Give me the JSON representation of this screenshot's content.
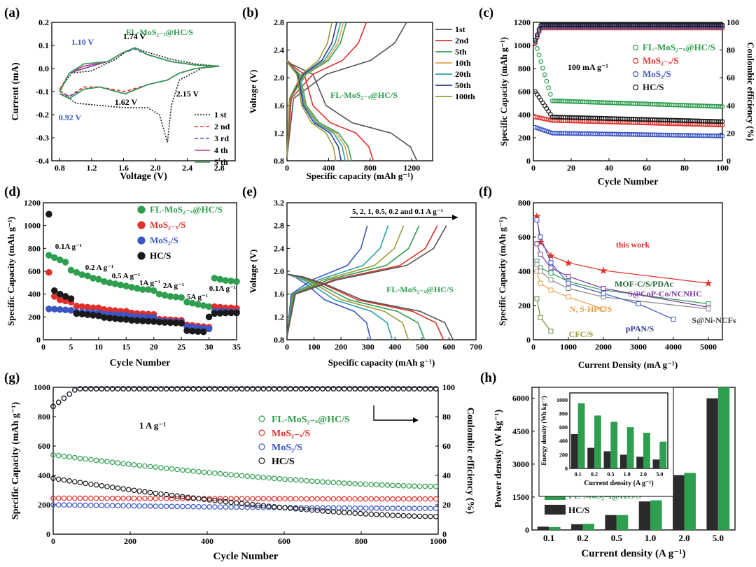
{
  "colors": {
    "green": "#2e9e4f",
    "red": "#e0302b",
    "blue": "#3b56c4",
    "black": "#1a1a1a",
    "gray": "#555555",
    "olive": "#9a9a35",
    "teal": "#27a3a8",
    "navy": "#2a3a8f",
    "orange": "#e8a04a",
    "purple": "#7a3a9a",
    "dark_bar": "#2b2b2b"
  },
  "chart_data": [
    {
      "panel": "(a)",
      "type": "line",
      "xlabel": "Voltage (V)",
      "ylabel": "Current (mA)",
      "xlim": [
        0.7,
        3.0
      ],
      "ylim": [
        -0.4,
        0.2
      ],
      "xticks": [
        "0.8",
        "1.2",
        "1.6",
        "2.0",
        "2.4",
        "2.8"
      ],
      "yticks": [
        "-0.4",
        "-0.3",
        "-0.2",
        "-0.1",
        "0.0",
        "0.1",
        "0.2"
      ],
      "material": "FL-MoS₂₋ₓ@HC/S",
      "annotations": [
        "1.10 V",
        "1.74 V",
        "2.15 V",
        "1.62 V",
        "0.92 V"
      ],
      "series": [
        {
          "name": "1 st",
          "style": "dotted",
          "color": "#1a1a1a",
          "x": [
            0.8,
            0.95,
            1.2,
            1.5,
            1.62,
            1.7,
            1.74,
            1.9,
            2.2,
            2.5,
            2.8,
            2.6,
            2.3,
            2.2,
            2.15,
            2.05,
            1.9,
            1.62,
            1.3,
            1.0,
            0.85,
            0.8
          ],
          "y": [
            -0.09,
            -0.02,
            -0.01,
            0.04,
            0.07,
            0.08,
            0.09,
            0.07,
            0.04,
            0.02,
            0.01,
            0.005,
            -0.05,
            -0.16,
            -0.32,
            -0.2,
            -0.17,
            -0.17,
            -0.16,
            -0.15,
            -0.11,
            -0.09
          ]
        },
        {
          "name": "2 nd",
          "style": "dashed",
          "color": "#e0302b",
          "x": [
            0.8,
            0.92,
            1.1,
            1.4,
            1.6,
            1.74,
            1.9,
            2.2,
            2.5,
            2.8,
            2.5,
            2.3,
            2.15,
            1.9,
            1.62,
            1.3,
            1.1,
            0.92,
            0.8
          ],
          "y": [
            -0.09,
            -0.02,
            0.0,
            0.03,
            0.07,
            0.09,
            0.06,
            0.03,
            0.015,
            0.01,
            0.0,
            -0.02,
            -0.05,
            -0.07,
            -0.1,
            -0.08,
            -0.08,
            -0.12,
            -0.1
          ]
        },
        {
          "name": "3 rd",
          "style": "dashed",
          "color": "#3b56c4",
          "x": [
            0.8,
            0.92,
            1.1,
            1.4,
            1.6,
            1.74,
            1.9,
            2.2,
            2.5,
            2.8,
            2.5,
            2.3,
            2.15,
            1.9,
            1.62,
            1.3,
            1.1,
            0.92,
            0.8
          ],
          "y": [
            -0.1,
            -0.02,
            0.0,
            0.03,
            0.07,
            0.085,
            0.06,
            0.03,
            0.015,
            0.01,
            0.0,
            -0.02,
            -0.05,
            -0.07,
            -0.11,
            -0.08,
            -0.09,
            -0.12,
            -0.11
          ]
        },
        {
          "name": "4 th",
          "style": "solid",
          "color": "#c03a9a",
          "x": [
            0.8,
            0.92,
            1.1,
            1.4,
            1.6,
            1.74,
            1.9,
            2.2,
            2.5,
            2.8,
            2.5,
            2.3,
            2.15,
            1.9,
            1.62,
            1.3,
            1.1,
            0.92,
            0.8
          ],
          "y": [
            -0.1,
            -0.02,
            0.01,
            0.03,
            0.07,
            0.09,
            0.06,
            0.03,
            0.015,
            0.01,
            0.0,
            -0.02,
            -0.05,
            -0.07,
            -0.11,
            -0.08,
            -0.09,
            -0.13,
            -0.11
          ]
        },
        {
          "name": "5 th",
          "style": "solid",
          "color": "#2e9e4f",
          "x": [
            0.8,
            0.92,
            1.1,
            1.4,
            1.6,
            1.74,
            1.9,
            2.2,
            2.5,
            2.8,
            2.5,
            2.3,
            2.15,
            1.9,
            1.62,
            1.3,
            1.1,
            0.92,
            0.8
          ],
          "y": [
            -0.1,
            -0.02,
            0.02,
            0.03,
            0.07,
            0.09,
            0.06,
            0.03,
            0.015,
            0.01,
            0.0,
            -0.02,
            -0.05,
            -0.07,
            -0.11,
            -0.08,
            -0.09,
            -0.13,
            -0.11
          ]
        }
      ]
    },
    {
      "panel": "(b)",
      "type": "line",
      "xlabel": "Specific capacity (mAh g⁻¹)",
      "ylabel": "Voltage (V)",
      "xlim": [
        0,
        1400
      ],
      "ylim": [
        0.8,
        2.8
      ],
      "xticks": [
        "0",
        "400",
        "800",
        "1200"
      ],
      "yticks": [
        "0.8",
        "1.2",
        "1.6",
        "2.0",
        "2.4",
        "2.8"
      ],
      "material": "FL-MoS₂₋ₓ@HC/S",
      "series": [
        {
          "name": "1st",
          "color": "#555555",
          "capacity": 1250
        },
        {
          "name": "2nd",
          "color": "#e0302b",
          "capacity": 830
        },
        {
          "name": "5th",
          "color": "#2e9e4f",
          "capacity": 620
        },
        {
          "name": "10th",
          "color": "#e8a04a",
          "capacity": 590
        },
        {
          "name": "20th",
          "color": "#27a3a8",
          "capacity": 560
        },
        {
          "name": "50th",
          "color": "#2a3a8f",
          "capacity": 520
        },
        {
          "name": "100th",
          "color": "#9a9a35",
          "capacity": 470
        }
      ]
    },
    {
      "panel": "(c)",
      "type": "scatter",
      "xlabel": "Cycle Number",
      "ylabel": "Specific Capacity (mAh g⁻¹)",
      "y2label": "Coulombic efficiency (%)",
      "xlim": [
        0,
        100
      ],
      "ylim": [
        0,
        1200
      ],
      "y2lim": [
        0,
        100
      ],
      "xticks": [
        "0",
        "20",
        "40",
        "60",
        "80",
        "100"
      ],
      "yticks": [
        "0",
        "200",
        "400",
        "600",
        "800",
        "1000",
        "1200"
      ],
      "y2ticks": [
        "0",
        "20",
        "40",
        "60",
        "80",
        "100"
      ],
      "annotation": "100 mA g⁻¹",
      "series": [
        {
          "name": "FL-MoS₂₋ₓ@HC/S",
          "color": "#2e9e4f",
          "first": 1030,
          "mid": 520,
          "end": 470,
          "ce": 97
        },
        {
          "name": "MoS₂₋ₓ/S",
          "color": "#e0302b",
          "first": 380,
          "mid": 350,
          "end": 310,
          "ce": 96
        },
        {
          "name": "MoS₂/S",
          "color": "#3b56c4",
          "first": 290,
          "mid": 240,
          "end": 215,
          "ce": 97
        },
        {
          "name": "HC/S",
          "color": "#1a1a1a",
          "first": 600,
          "mid": 380,
          "end": 340,
          "ce": 98
        }
      ]
    },
    {
      "panel": "(d)",
      "type": "scatter",
      "xlabel": "Cycle Number",
      "ylabel": "Specific Capacity (mAh g⁻¹)",
      "xlim": [
        0,
        35
      ],
      "ylim": [
        0,
        1200
      ],
      "xticks": [
        "0",
        "5",
        "10",
        "15",
        "20",
        "25",
        "30",
        "35"
      ],
      "yticks": [
        "0",
        "100",
        "200",
        "300",
        "400",
        "500",
        "600",
        "700",
        "800",
        "900",
        "1000",
        "1100",
        "1200"
      ],
      "rate_labels": [
        "0.1A g⁻¹",
        "0.2 A g⁻¹",
        "0.5 A g⁻¹",
        "1A g⁻¹",
        "2A g⁻¹",
        "5A g⁻¹",
        "0.1A g⁻¹"
      ],
      "series": [
        {
          "name": "FL-MoS₂₋ₓ@HC/S",
          "color": "#2e9e4f",
          "values": [
            740,
            720,
            700,
            680,
            610,
            590,
            570,
            560,
            540,
            530,
            510,
            500,
            490,
            480,
            470,
            460,
            450,
            440,
            440,
            430,
            400,
            390,
            380,
            375,
            370,
            330,
            320,
            310,
            300,
            290,
            540,
            530,
            520,
            515,
            510
          ]
        },
        {
          "name": "MoS₂₋ₓ/S",
          "color": "#e0302b",
          "values": [
            590,
            380,
            350,
            340,
            330,
            295,
            290,
            285,
            280,
            280,
            265,
            260,
            255,
            250,
            250,
            235,
            230,
            228,
            225,
            222,
            180,
            178,
            175,
            172,
            170,
            130,
            125,
            120,
            115,
            110,
            290,
            285,
            280,
            280,
            275
          ]
        },
        {
          "name": "MoS₂/S",
          "color": "#3b56c4",
          "values": [
            270,
            268,
            265,
            262,
            258,
            245,
            242,
            240,
            238,
            236,
            225,
            222,
            220,
            218,
            215,
            205,
            202,
            200,
            198,
            196,
            165,
            162,
            160,
            158,
            156,
            115,
            110,
            105,
            100,
            96,
            250,
            250,
            248,
            246,
            244
          ]
        },
        {
          "name": "HC/S",
          "color": "#1a1a1a",
          "values": [
            1100,
            430,
            400,
            380,
            360,
            230,
            225,
            220,
            215,
            210,
            195,
            190,
            185,
            180,
            178,
            170,
            168,
            165,
            163,
            160,
            155,
            152,
            150,
            148,
            145,
            80,
            75,
            72,
            70,
            200,
            230,
            232,
            235,
            236,
            235
          ]
        }
      ]
    },
    {
      "panel": "(e)",
      "type": "line",
      "xlabel": "Specific capacity (mAh g⁻¹)",
      "ylabel": "Voltage (V)",
      "xlim": [
        0,
        700
      ],
      "ylim": [
        0.8,
        3.2
      ],
      "xticks": [
        "0",
        "100",
        "200",
        "300",
        "400",
        "500",
        "600",
        "700"
      ],
      "yticks": [
        "0.8",
        "1.2",
        "1.6",
        "2.0",
        "2.4",
        "2.8",
        "3.2"
      ],
      "annotation": "5, 2, 1, 0.5, 0.2 and 0.1 A g⁻¹",
      "material": "FL-MoS₂₋ₓ@HC/S",
      "series": [
        {
          "name": "5",
          "color": "#3b56c4",
          "capacity": 310
        },
        {
          "name": "2",
          "color": "#27a3a8",
          "capacity": 390
        },
        {
          "name": "1",
          "color": "#9a9a35",
          "capacity": 450
        },
        {
          "name": "0.5",
          "color": "#2e9e4f",
          "capacity": 510
        },
        {
          "name": "0.2",
          "color": "#e0302b",
          "capacity": 580
        },
        {
          "name": "0.1",
          "color": "#555555",
          "capacity": 615
        }
      ]
    },
    {
      "panel": "(f)",
      "type": "line",
      "xlabel": "Current Density (mA g⁻¹)",
      "ylabel": "Specific Capacity (mAh g⁻¹)",
      "xlim": [
        0,
        5400
      ],
      "ylim": [
        0,
        800
      ],
      "xticks": [
        "0",
        "1000",
        "2000",
        "3000",
        "4000",
        "5000"
      ],
      "yticks": [
        "0",
        "200",
        "400",
        "600",
        "800"
      ],
      "series": [
        {
          "name": "this work",
          "color": "#e0302b",
          "x": [
            100,
            200,
            500,
            1000,
            2000,
            5000
          ],
          "y": [
            720,
            570,
            490,
            450,
            405,
            330
          ]
        },
        {
          "name": "MOF-C/S/PDAc",
          "color": "#2e9e4f",
          "x": [
            100,
            200,
            500,
            1000,
            2000,
            5000
          ],
          "y": [
            460,
            420,
            390,
            340,
            290,
            210
          ]
        },
        {
          "name": "S@CoP-Co/NCNHC",
          "color": "#7a3a9a",
          "x": [
            100,
            200,
            500,
            1000,
            2000,
            5000
          ],
          "y": [
            560,
            500,
            420,
            370,
            300,
            190
          ]
        },
        {
          "name": "N, S-HPC/S",
          "color": "#e8a04a",
          "x": [
            100,
            200,
            500,
            1000,
            2000
          ],
          "y": [
            400,
            330,
            290,
            250,
            180
          ]
        },
        {
          "name": "S@Ni-NCFs",
          "color": "#888888",
          "x": [
            100,
            200,
            500,
            1000,
            2000,
            5000
          ],
          "y": [
            440,
            400,
            350,
            300,
            250,
            180
          ]
        },
        {
          "name": "pPAN/S",
          "color": "#3b56c4",
          "x": [
            100,
            200,
            500,
            1000,
            2000,
            3000,
            4000
          ],
          "y": [
            700,
            600,
            450,
            330,
            270,
            210,
            120
          ]
        },
        {
          "name": "CFC/S",
          "color": "#6a8a35",
          "x": [
            100,
            200,
            500
          ],
          "y": [
            240,
            130,
            50
          ]
        }
      ]
    },
    {
      "panel": "(g)",
      "type": "scatter",
      "xlabel": "Cycle Number",
      "ylabel": "Specific Capacity (mAh g⁻¹)",
      "y2label": "Coulombic efficiency (%)",
      "xlim": [
        0,
        1000
      ],
      "ylim": [
        0,
        1000
      ],
      "y2lim": [
        0,
        100
      ],
      "xticks": [
        "0",
        "200",
        "400",
        "600",
        "800",
        "1000"
      ],
      "yticks": [
        "0",
        "200",
        "400",
        "600",
        "800",
        "1000"
      ],
      "y2ticks": [
        "0",
        "20",
        "40",
        "60",
        "80",
        "100"
      ],
      "annotation": "1 A g⁻¹",
      "series": [
        {
          "name": "FL-MoS₂₋ₓ@HC/S",
          "color": "#2e9e4f",
          "start": 540,
          "end": 325,
          "ce": 99
        },
        {
          "name": "MoS₂₋ₓ/S",
          "color": "#e0302b",
          "start": 245,
          "end": 240,
          "ce": 99
        },
        {
          "name": "MoS₂/S",
          "color": "#3b56c4",
          "start": 200,
          "end": 175,
          "ce": 99
        },
        {
          "name": "HC/S",
          "color": "#1a1a1a",
          "start": 380,
          "end": 120,
          "ce": 99
        }
      ]
    },
    {
      "panel": "(h)",
      "type": "bar",
      "xlabel": "Current density (A g⁻¹)",
      "ylabel": "Power density (W kg⁻¹)",
      "ylim": [
        0,
        6500
      ],
      "yticks": [
        "0",
        "1500",
        "3000",
        "4500",
        "6000"
      ],
      "categories": [
        "0.1",
        "0.2",
        "0.5",
        "1.0",
        "2.0",
        "5.0"
      ],
      "series": [
        {
          "name": "FL-MoS₂₋ₓ@HC/S",
          "color": "#2e9e4f",
          "values": [
            130,
            280,
            680,
            1350,
            2600,
            6500
          ]
        },
        {
          "name": "HC/S",
          "color": "#2b2b2b",
          "values": [
            150,
            260,
            680,
            1300,
            2500,
            6000
          ]
        }
      ],
      "inset": {
        "xlabel": "Current density (A g⁻¹)",
        "ylabel": "Energy density (Wh kg⁻¹)",
        "ylim": [
          0,
          1100
        ],
        "yticks": [
          "0",
          "200",
          "400",
          "600",
          "800",
          "1000"
        ],
        "categories": [
          "0.1",
          "0.2",
          "0.5",
          "1.0",
          "2.0",
          "5.0"
        ],
        "series": [
          {
            "name": "HC/S",
            "color": "#2b2b2b",
            "values": [
              500,
              300,
              250,
              200,
              170,
              130
            ]
          },
          {
            "name": "FL-MoS₂₋ₓ@HC/S",
            "color": "#2e9e4f",
            "values": [
              950,
              770,
              680,
              600,
              520,
              390
            ]
          }
        ]
      }
    }
  ]
}
